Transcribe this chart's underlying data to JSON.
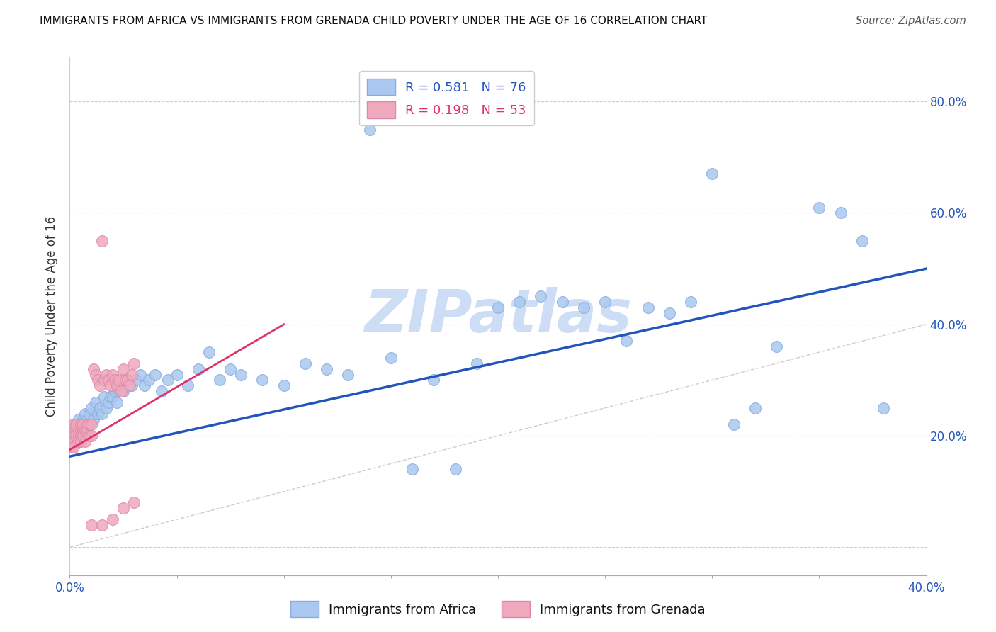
{
  "title": "IMMIGRANTS FROM AFRICA VS IMMIGRANTS FROM GRENADA CHILD POVERTY UNDER THE AGE OF 16 CORRELATION CHART",
  "source": "Source: ZipAtlas.com",
  "ylabel": "Child Poverty Under the Age of 16",
  "legend_label1": "Immigrants from Africa",
  "legend_label2": "Immigrants from Grenada",
  "R1": 0.581,
  "N1": 76,
  "R2": 0.198,
  "N2": 53,
  "color_africa": "#aac8f0",
  "color_grenada": "#f0a8bc",
  "line_color_africa": "#2255bb",
  "line_color_grenada": "#dd3366",
  "xlim": [
    0.0,
    0.4
  ],
  "ylim": [
    -0.05,
    0.88
  ],
  "xtick_positions": [
    0.0,
    0.05,
    0.1,
    0.15,
    0.2,
    0.25,
    0.3,
    0.35,
    0.4
  ],
  "xtick_labels": [
    "0.0%",
    "",
    "",
    "",
    "",
    "",
    "",
    "",
    "40.0%"
  ],
  "ytick_positions": [
    0.0,
    0.2,
    0.4,
    0.6,
    0.8
  ],
  "ytick_labels_right": [
    "",
    "20.0%",
    "40.0%",
    "60.0%",
    "80.0%"
  ],
  "watermark": "ZIPatlas",
  "watermark_color": "#ccddf5",
  "background_color": "#ffffff",
  "grid_color": "#cccccc",
  "africa_x": [
    0.001,
    0.002,
    0.003,
    0.003,
    0.004,
    0.004,
    0.005,
    0.005,
    0.006,
    0.006,
    0.007,
    0.007,
    0.008,
    0.008,
    0.009,
    0.009,
    0.01,
    0.011,
    0.012,
    0.013,
    0.014,
    0.015,
    0.016,
    0.017,
    0.018,
    0.019,
    0.02,
    0.021,
    0.022,
    0.023,
    0.025,
    0.027,
    0.029,
    0.031,
    0.033,
    0.035,
    0.037,
    0.04,
    0.043,
    0.046,
    0.05,
    0.055,
    0.06,
    0.065,
    0.07,
    0.075,
    0.08,
    0.09,
    0.1,
    0.11,
    0.12,
    0.13,
    0.14,
    0.15,
    0.16,
    0.17,
    0.18,
    0.19,
    0.2,
    0.21,
    0.22,
    0.23,
    0.24,
    0.25,
    0.26,
    0.27,
    0.28,
    0.29,
    0.3,
    0.31,
    0.32,
    0.33,
    0.35,
    0.36,
    0.37,
    0.38
  ],
  "africa_y": [
    0.2,
    0.21,
    0.22,
    0.19,
    0.23,
    0.21,
    0.2,
    0.22,
    0.23,
    0.21,
    0.24,
    0.22,
    0.23,
    0.21,
    0.24,
    0.22,
    0.25,
    0.23,
    0.26,
    0.24,
    0.25,
    0.24,
    0.27,
    0.25,
    0.26,
    0.27,
    0.27,
    0.28,
    0.26,
    0.28,
    0.28,
    0.3,
    0.29,
    0.3,
    0.31,
    0.29,
    0.3,
    0.31,
    0.28,
    0.3,
    0.31,
    0.29,
    0.32,
    0.35,
    0.3,
    0.32,
    0.31,
    0.3,
    0.29,
    0.33,
    0.32,
    0.31,
    0.75,
    0.34,
    0.14,
    0.3,
    0.14,
    0.33,
    0.43,
    0.44,
    0.45,
    0.44,
    0.43,
    0.44,
    0.37,
    0.43,
    0.42,
    0.44,
    0.67,
    0.22,
    0.25,
    0.36,
    0.61,
    0.6,
    0.55,
    0.25
  ],
  "grenada_x": [
    0.001,
    0.001,
    0.001,
    0.002,
    0.002,
    0.002,
    0.002,
    0.003,
    0.003,
    0.003,
    0.004,
    0.004,
    0.004,
    0.005,
    0.005,
    0.005,
    0.005,
    0.006,
    0.006,
    0.006,
    0.007,
    0.007,
    0.008,
    0.008,
    0.009,
    0.009,
    0.01,
    0.01,
    0.011,
    0.012,
    0.013,
    0.014,
    0.015,
    0.016,
    0.017,
    0.018,
    0.019,
    0.02,
    0.021,
    0.022,
    0.023,
    0.024,
    0.025,
    0.026,
    0.027,
    0.028,
    0.029,
    0.03,
    0.015,
    0.02,
    0.025,
    0.03,
    0.01
  ],
  "grenada_y": [
    0.19,
    0.21,
    0.18,
    0.2,
    0.22,
    0.19,
    0.18,
    0.21,
    0.2,
    0.22,
    0.2,
    0.19,
    0.21,
    0.21,
    0.2,
    0.19,
    0.22,
    0.21,
    0.2,
    0.22,
    0.21,
    0.19,
    0.22,
    0.21,
    0.2,
    0.22,
    0.22,
    0.2,
    0.32,
    0.31,
    0.3,
    0.29,
    0.55,
    0.3,
    0.31,
    0.3,
    0.29,
    0.31,
    0.3,
    0.29,
    0.3,
    0.28,
    0.32,
    0.3,
    0.3,
    0.29,
    0.31,
    0.33,
    0.04,
    0.05,
    0.07,
    0.08,
    0.04
  ],
  "africa_trend_x": [
    0.0,
    0.4
  ],
  "africa_trend_y": [
    0.163,
    0.5
  ],
  "grenada_trend_x": [
    0.0,
    0.1
  ],
  "grenada_trend_y": [
    0.175,
    0.4
  ]
}
